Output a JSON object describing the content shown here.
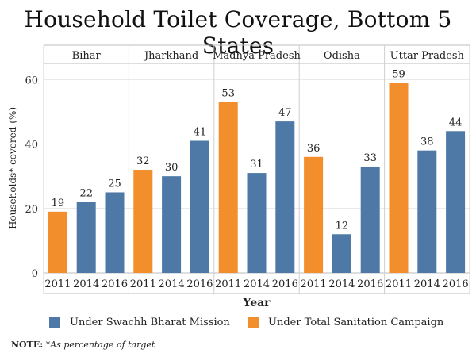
{
  "title": "Household Toilet Coverage, Bottom 5 States",
  "chart_data": {
    "type": "bar",
    "title": "Household Toilet Coverage, Bottom 5 States",
    "xlabel": "Year",
    "ylabel": "Households* covered (%)",
    "ylim": [
      0,
      65
    ],
    "yticks": [
      "0",
      "20",
      "40",
      "60"
    ],
    "grid": true,
    "legend_position": "bottom",
    "colors": {
      "Under Swachh Bharat Mission": "#4e79a7",
      "Under Total Sanitation Campaign": "#f28e2b"
    },
    "panels": [
      {
        "state": "Bihar",
        "bars": [
          {
            "year": "2011",
            "value": 19,
            "series": "Under Total Sanitation Campaign"
          },
          {
            "year": "2014",
            "value": 22,
            "series": "Under Swachh Bharat Mission"
          },
          {
            "year": "2016",
            "value": 25,
            "series": "Under Swachh Bharat Mission"
          }
        ]
      },
      {
        "state": "Jharkhand",
        "bars": [
          {
            "year": "2011",
            "value": 32,
            "series": "Under Total Sanitation Campaign"
          },
          {
            "year": "2014",
            "value": 30,
            "series": "Under Swachh Bharat Mission"
          },
          {
            "year": "2016",
            "value": 41,
            "series": "Under Swachh Bharat Mission"
          }
        ]
      },
      {
        "state": "Madhya Pradesh",
        "bars": [
          {
            "year": "2011",
            "value": 53,
            "series": "Under Total Sanitation Campaign"
          },
          {
            "year": "2014",
            "value": 31,
            "series": "Under Swachh Bharat Mission"
          },
          {
            "year": "2016",
            "value": 47,
            "series": "Under Swachh Bharat Mission"
          }
        ]
      },
      {
        "state": "Odisha",
        "bars": [
          {
            "year": "2011",
            "value": 36,
            "series": "Under Total Sanitation Campaign"
          },
          {
            "year": "2014",
            "value": 12,
            "series": "Under Swachh Bharat Mission"
          },
          {
            "year": "2016",
            "value": 33,
            "series": "Under Swachh Bharat Mission"
          }
        ]
      },
      {
        "state": "Uttar Pradesh",
        "bars": [
          {
            "year": "2011",
            "value": 59,
            "series": "Under Total Sanitation Campaign"
          },
          {
            "year": "2014",
            "value": 38,
            "series": "Under Swachh Bharat Mission"
          },
          {
            "year": "2016",
            "value": 44,
            "series": "Under Swachh Bharat Mission"
          }
        ]
      }
    ]
  },
  "legend": {
    "sbm_label": "Under Swachh Bharat Mission",
    "sbm_color": "#4e79a7",
    "tsc_label": "Under Total Sanitation Campaign",
    "tsc_color": "#f28e2b"
  },
  "note": {
    "label": "NOTE:",
    "text": "*As percentage of target"
  }
}
